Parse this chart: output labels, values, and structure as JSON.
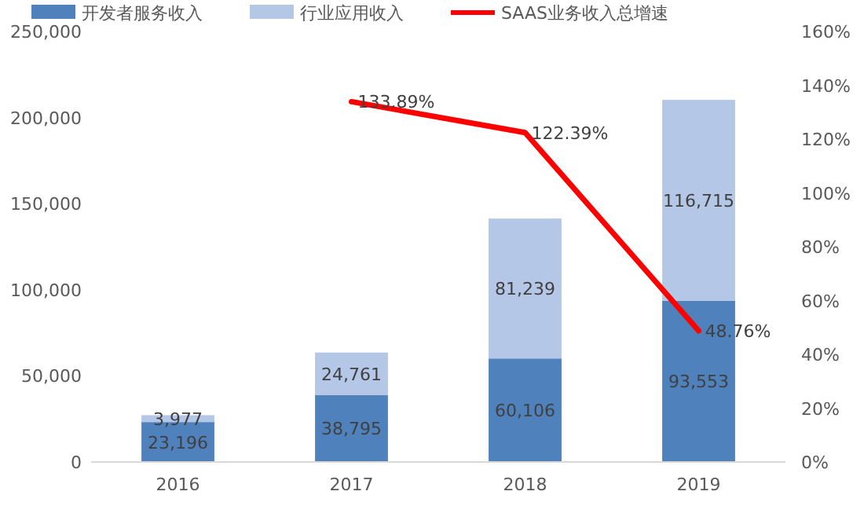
{
  "chart_data": {
    "type": "bar",
    "stacked": true,
    "categories": [
      "2016",
      "2017",
      "2018",
      "2019"
    ],
    "series": [
      {
        "name": "开发者服务收入",
        "color": "#4f81bd",
        "values": [
          23196,
          38795,
          60106,
          93553
        ],
        "value_labels": [
          "23,196",
          "38,795",
          "60,106",
          "93,553"
        ]
      },
      {
        "name": "行业应用收入",
        "color": "#b4c7e7",
        "values": [
          3977,
          24761,
          81239,
          116715
        ],
        "value_labels": [
          "3,977",
          "24,761",
          "81,239",
          "116,715"
        ]
      },
      {
        "name": "SAAS业务收入总增速",
        "type": "line",
        "axis": "y2",
        "color": "#ff0000",
        "marker": "none",
        "values": [
          null,
          133.89,
          122.39,
          48.76
        ],
        "value_labels": [
          null,
          "133.89%",
          "122.39%",
          "48.76%"
        ]
      }
    ],
    "ylim": [
      0,
      250000
    ],
    "yticks": [
      {
        "value": 0,
        "label": "0"
      },
      {
        "value": 50000,
        "label": "50,000"
      },
      {
        "value": 100000,
        "label": "100,000"
      },
      {
        "value": 150000,
        "label": "150,000"
      },
      {
        "value": 200000,
        "label": "200,000"
      },
      {
        "value": 250000,
        "label": "250,000"
      }
    ],
    "y2lim": [
      0,
      160
    ],
    "y2ticks": [
      {
        "value": 0,
        "label": "0%"
      },
      {
        "value": 20,
        "label": "20%"
      },
      {
        "value": 40,
        "label": "40%"
      },
      {
        "value": 60,
        "label": "60%"
      },
      {
        "value": 80,
        "label": "80%"
      },
      {
        "value": 100,
        "label": "100%"
      },
      {
        "value": 120,
        "label": "120%"
      },
      {
        "value": 140,
        "label": "140%"
      },
      {
        "value": 160,
        "label": "160%"
      }
    ],
    "legend": "top",
    "grid": false
  }
}
